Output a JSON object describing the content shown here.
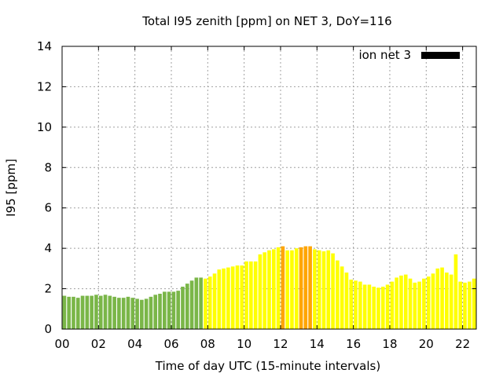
{
  "chart_data": {
    "type": "bar",
    "title": "Total I95 zenith [ppm] on NET 3, DoY=116",
    "xlabel": "Time of day UTC (15-minute intervals)",
    "ylabel": "I95 [ppm]",
    "xlim": [
      0,
      22.75
    ],
    "ylim": [
      0,
      14
    ],
    "xticks": [
      0,
      2,
      4,
      6,
      8,
      10,
      12,
      14,
      16,
      18,
      20,
      22
    ],
    "xtick_labels": [
      "00",
      "02",
      "04",
      "06",
      "08",
      "10",
      "12",
      "14",
      "16",
      "18",
      "20",
      "22"
    ],
    "yticks": [
      0,
      2,
      4,
      6,
      8,
      10,
      12,
      14
    ],
    "ytick_labels": [
      "0",
      "2",
      "4",
      "6",
      "8",
      "10",
      "12",
      "14"
    ],
    "grid": true,
    "legend": {
      "position": "top-right",
      "label": "ion net 3",
      "color": "#000000"
    },
    "bar_interval_hours": 0.25,
    "colors": {
      "green": "#7ab648",
      "yellow": "#ffff00",
      "orange": "#ffa500"
    },
    "series": [
      {
        "values": [
          1.65,
          1.6,
          1.6,
          1.55,
          1.65,
          1.65,
          1.65,
          1.7,
          1.65,
          1.7,
          1.65,
          1.6,
          1.55,
          1.55,
          1.6,
          1.55,
          1.5,
          1.45,
          1.5,
          1.6,
          1.7,
          1.75,
          1.85,
          1.85,
          1.85,
          1.9,
          2.1,
          2.25,
          2.4,
          2.55,
          2.55,
          2.5,
          2.6,
          2.75,
          2.95,
          3.0,
          3.05,
          3.1,
          3.15,
          3.15,
          3.35,
          3.35,
          3.35,
          3.7,
          3.8,
          3.9,
          3.95,
          4.05,
          4.1,
          3.9,
          3.9,
          4.0,
          4.05,
          4.1,
          4.1,
          3.95,
          3.9,
          3.85,
          3.9,
          3.75,
          3.4,
          3.1,
          2.8,
          2.45,
          2.4,
          2.35,
          2.2,
          2.2,
          2.1,
          2.05,
          2.1,
          2.2,
          2.35,
          2.55,
          2.65,
          2.7,
          2.5,
          2.3,
          2.35,
          2.5,
          2.6,
          2.75,
          3.0,
          3.05,
          2.8,
          2.7,
          3.7,
          2.35,
          2.3,
          2.35,
          2.5
        ],
        "colors": [
          "green",
          "green",
          "green",
          "green",
          "green",
          "green",
          "green",
          "green",
          "green",
          "green",
          "green",
          "green",
          "green",
          "green",
          "green",
          "green",
          "green",
          "green",
          "green",
          "green",
          "green",
          "green",
          "green",
          "green",
          "green",
          "green",
          "green",
          "green",
          "green",
          "green",
          "green",
          "yellow",
          "yellow",
          "yellow",
          "yellow",
          "yellow",
          "yellow",
          "yellow",
          "yellow",
          "yellow",
          "yellow",
          "yellow",
          "yellow",
          "yellow",
          "yellow",
          "yellow",
          "yellow",
          "yellow",
          "orange",
          "yellow",
          "yellow",
          "yellow",
          "orange",
          "orange",
          "orange",
          "yellow",
          "yellow",
          "yellow",
          "yellow",
          "yellow",
          "yellow",
          "yellow",
          "yellow",
          "yellow",
          "yellow",
          "yellow",
          "yellow",
          "yellow",
          "yellow",
          "yellow",
          "yellow",
          "yellow",
          "yellow",
          "yellow",
          "yellow",
          "yellow",
          "yellow",
          "yellow",
          "yellow",
          "yellow",
          "yellow",
          "yellow",
          "yellow",
          "yellow",
          "yellow",
          "yellow",
          "yellow",
          "yellow",
          "yellow",
          "yellow",
          "yellow"
        ]
      }
    ]
  }
}
